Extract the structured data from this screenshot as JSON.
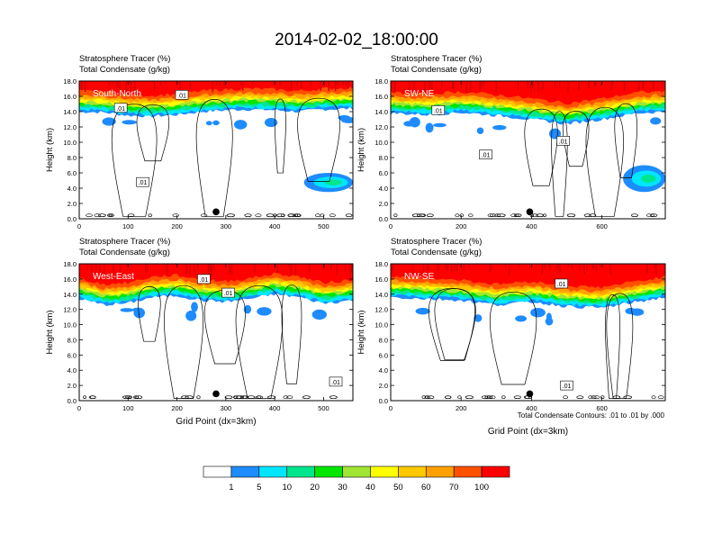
{
  "figure": {
    "title": "2014-02-02_18:00:00",
    "panel_titles": [
      "Stratosphere Tracer   (%)",
      "Total Condensate   (g/kg)"
    ],
    "ylabel": "Height (km)",
    "xlabel": "Grid Point (dx=3km)",
    "contour_note": "Total Condensate Contours: .01 to .01 by .000",
    "contour_label": ".01"
  },
  "colorbar": {
    "levels": [
      "1",
      "5",
      "10",
      "20",
      "30",
      "40",
      "50",
      "60",
      "70",
      "100"
    ],
    "colors": [
      "#ffffff",
      "#1e8cff",
      "#00e6ff",
      "#00e68c",
      "#00e600",
      "#a0e632",
      "#ffff00",
      "#ffc800",
      "#ffa000",
      "#ff5000",
      "#ff0000"
    ]
  },
  "chart_data": [
    {
      "type": "heatmap",
      "panel_label": "South-North",
      "xlim": [
        0,
        560
      ],
      "xticks": [
        "0",
        "100",
        "200",
        "300",
        "400",
        "500"
      ],
      "ylim": [
        0,
        18
      ],
      "yticks": [
        "0.0",
        "2.0",
        "4.0",
        "6.0",
        "8.0",
        "10.0",
        "12.0",
        "14.0",
        "16.0",
        "18.0"
      ],
      "marker_x": 280,
      "series": [
        {
          "name": "stratosphere_tracer_base_km",
          "x": [
            0,
            50,
            100,
            150,
            200,
            250,
            300,
            350,
            400,
            450,
            500,
            560
          ],
          "values": [
            14.0,
            13.9,
            13.5,
            13.4,
            13.6,
            14.0,
            14.2,
            14.3,
            14.2,
            14.0,
            14.3,
            14.4
          ]
        },
        {
          "name": "tracer_patch",
          "x_range": [
            460,
            560
          ],
          "y_range": [
            3.5,
            6.0
          ],
          "peak": 20
        }
      ],
      "contour_labels": [
        {
          "x": 85,
          "y": 14.5
        },
        {
          "x": 210,
          "y": 16.2
        },
        {
          "x": 130,
          "y": 4.8
        }
      ]
    },
    {
      "type": "heatmap",
      "panel_label": "SW-NE",
      "xlim": [
        0,
        780
      ],
      "xticks": [
        "0",
        "200",
        "400",
        "600"
      ],
      "ylim": [
        0,
        18
      ],
      "yticks": [
        "0.0",
        "2.0",
        "4.0",
        "6.0",
        "8.0",
        "10.0",
        "12.0",
        "14.0",
        "16.0",
        "18.0"
      ],
      "marker_x": 395,
      "series": [
        {
          "name": "stratosphere_tracer_base_km",
          "x": [
            0,
            100,
            200,
            300,
            400,
            500,
            600,
            700,
            780
          ],
          "values": [
            13.8,
            13.6,
            13.9,
            13.5,
            13.0,
            12.4,
            13.0,
            13.8,
            14.0
          ]
        },
        {
          "name": "tracer_patch",
          "x_range": [
            660,
            780
          ],
          "y_range": [
            3.5,
            7.0
          ],
          "peak": 20
        }
      ],
      "contour_labels": [
        {
          "x": 135,
          "y": 14.2
        },
        {
          "x": 270,
          "y": 8.4
        },
        {
          "x": 490,
          "y": 10.2
        }
      ]
    },
    {
      "type": "heatmap",
      "panel_label": "West-East",
      "xlim": [
        0,
        560
      ],
      "xticks": [
        "0",
        "100",
        "200",
        "300",
        "400",
        "500"
      ],
      "ylim": [
        0,
        18
      ],
      "yticks": [
        "0.0",
        "2.0",
        "4.0",
        "6.0",
        "8.0",
        "10.0",
        "12.0",
        "14.0",
        "16.0",
        "18.0"
      ],
      "marker_x": 280,
      "series": [
        {
          "name": "stratosphere_tracer_base_km",
          "x": [
            0,
            50,
            100,
            150,
            200,
            250,
            300,
            350,
            400,
            450,
            500,
            560
          ],
          "values": [
            13.4,
            12.6,
            12.8,
            13.6,
            13.8,
            13.2,
            13.0,
            13.4,
            14.0,
            13.6,
            12.8,
            13.2
          ]
        }
      ],
      "contour_labels": [
        {
          "x": 255,
          "y": 16.0
        },
        {
          "x": 305,
          "y": 14.2
        },
        {
          "x": 525,
          "y": 2.5
        }
      ]
    },
    {
      "type": "heatmap",
      "panel_label": "NW-SE",
      "xlim": [
        0,
        780
      ],
      "xticks": [
        "0",
        "200",
        "400",
        "600"
      ],
      "ylim": [
        0,
        18
      ],
      "yticks": [
        "0.0",
        "2.0",
        "4.0",
        "6.0",
        "8.0",
        "10.0",
        "12.0",
        "14.0",
        "16.0",
        "18.0"
      ],
      "marker_x": 395,
      "series": [
        {
          "name": "stratosphere_tracer_base_km",
          "x": [
            0,
            100,
            200,
            300,
            400,
            500,
            600,
            700,
            780
          ],
          "values": [
            13.6,
            13.4,
            13.2,
            12.6,
            13.0,
            12.4,
            12.2,
            13.0,
            13.6
          ]
        }
      ],
      "contour_labels": [
        {
          "x": 485,
          "y": 15.4
        },
        {
          "x": 500,
          "y": 2.0
        }
      ]
    }
  ]
}
